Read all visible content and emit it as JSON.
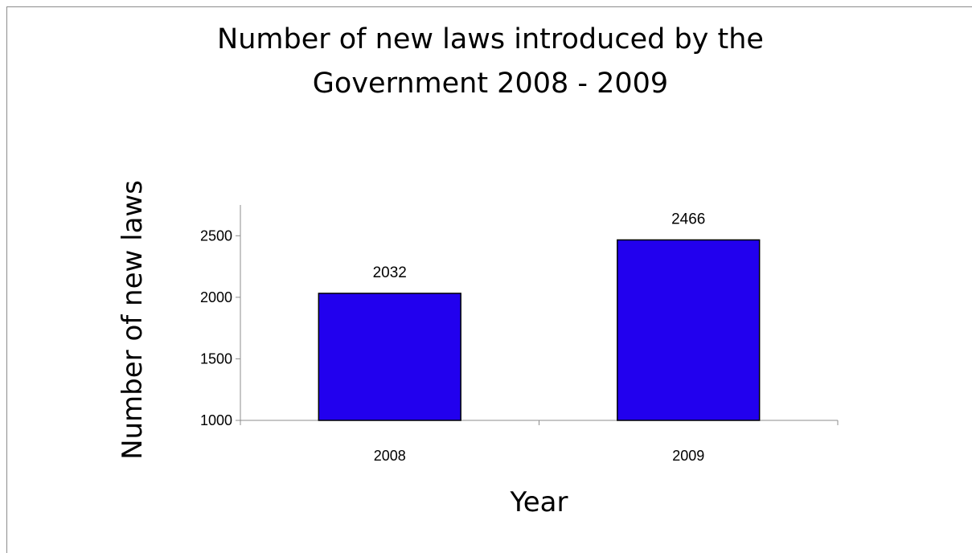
{
  "chart_data": {
    "type": "bar",
    "title": "Number of new laws introduced by the Government 2008 - 2009",
    "xlabel": "Year",
    "ylabel": "Number of new laws",
    "categories": [
      "2008",
      "2009"
    ],
    "values": [
      2032,
      2466
    ],
    "ylim": [
      1000,
      2750
    ],
    "yticks": [
      1000,
      1500,
      2000,
      2500
    ],
    "grid": false,
    "legend": "none",
    "bar_color": "#2200EE",
    "bar_border_color": "#000000"
  }
}
